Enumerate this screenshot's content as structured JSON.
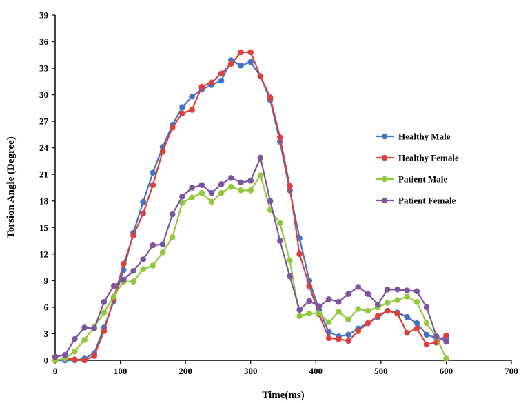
{
  "chart_data": {
    "type": "line",
    "xlabel": "Time(ms)",
    "ylabel": "Torsion Angle (Degree)",
    "xlim": [
      0,
      700
    ],
    "ylim": [
      0,
      39
    ],
    "xticks": [
      0,
      100,
      200,
      300,
      400,
      500,
      600,
      700
    ],
    "yticks": [
      0,
      3,
      6,
      9,
      12,
      15,
      18,
      21,
      24,
      27,
      30,
      33,
      36,
      39
    ],
    "grid": false,
    "legend_position": "right",
    "x": [
      0,
      15,
      30,
      45,
      60,
      75,
      90,
      105,
      120,
      135,
      150,
      165,
      180,
      195,
      210,
      225,
      240,
      255,
      270,
      285,
      300,
      315,
      330,
      345,
      360,
      375,
      390,
      405,
      420,
      435,
      450,
      465,
      480,
      495,
      510,
      525,
      540,
      555,
      570,
      585,
      600
    ],
    "series": [
      {
        "name": "Healthy Male",
        "color": "#4472c4",
        "values": [
          0,
          0,
          0,
          0.2,
          0.8,
          3.7,
          6.7,
          10.2,
          14.4,
          17.9,
          21.2,
          24.1,
          26.6,
          28.6,
          29.8,
          30.6,
          31.1,
          31.6,
          33.9,
          33.3,
          33.7,
          32.1,
          29.4,
          24.7,
          19.2,
          13.8,
          9.0,
          5.7,
          3.2,
          2.7,
          2.9,
          3.6,
          4.2,
          4.9,
          5.6,
          5.4,
          4.9,
          4.2,
          2.9,
          2.5,
          2.5
        ]
      },
      {
        "name": "Healthy Female",
        "color": "#d9413b",
        "values": [
          0,
          0.2,
          0.1,
          0,
          0.5,
          3.3,
          7.0,
          10.9,
          14.1,
          16.6,
          19.8,
          23.6,
          26.3,
          27.9,
          28.3,
          30.9,
          31.4,
          32.4,
          33.5,
          34.8,
          34.8,
          32.1,
          29.7,
          25.2,
          19.7,
          12.0,
          8.4,
          5.2,
          2.5,
          2.4,
          2.2,
          3.3,
          4.2,
          5.0,
          5.6,
          5.3,
          3.1,
          3.6,
          1.8,
          2.0,
          2.8
        ]
      },
      {
        "name": "Patient Male",
        "color": "#92c83e",
        "values": [
          0,
          0.2,
          1.0,
          2.3,
          3.8,
          5.4,
          7.2,
          8.9,
          8.9,
          10.3,
          10.7,
          12.2,
          13.9,
          17.8,
          18.4,
          18.9,
          17.9,
          18.9,
          19.6,
          19.2,
          19.2,
          20.9,
          17.0,
          15.5,
          11.3,
          5.0,
          5.3,
          5.3,
          4.3,
          5.5,
          4.6,
          5.8,
          5.6,
          6.0,
          6.5,
          6.8,
          7.2,
          6.6,
          4.2,
          2.6,
          0.2
        ]
      },
      {
        "name": "Patient Female",
        "color": "#7b569e",
        "values": [
          0.4,
          0.6,
          2.4,
          3.7,
          3.6,
          6.6,
          8.4,
          9.1,
          10.1,
          11.4,
          13.0,
          13.1,
          16.5,
          18.5,
          19.5,
          19.8,
          18.9,
          19.9,
          20.6,
          20.1,
          20.3,
          22.9,
          18.0,
          13.5,
          9.5,
          5.7,
          6.7,
          6.1,
          6.9,
          6.6,
          7.5,
          8.3,
          7.5,
          6.3,
          8.0,
          8.0,
          7.9,
          7.8,
          6.0,
          2.7,
          2.1
        ]
      }
    ]
  }
}
